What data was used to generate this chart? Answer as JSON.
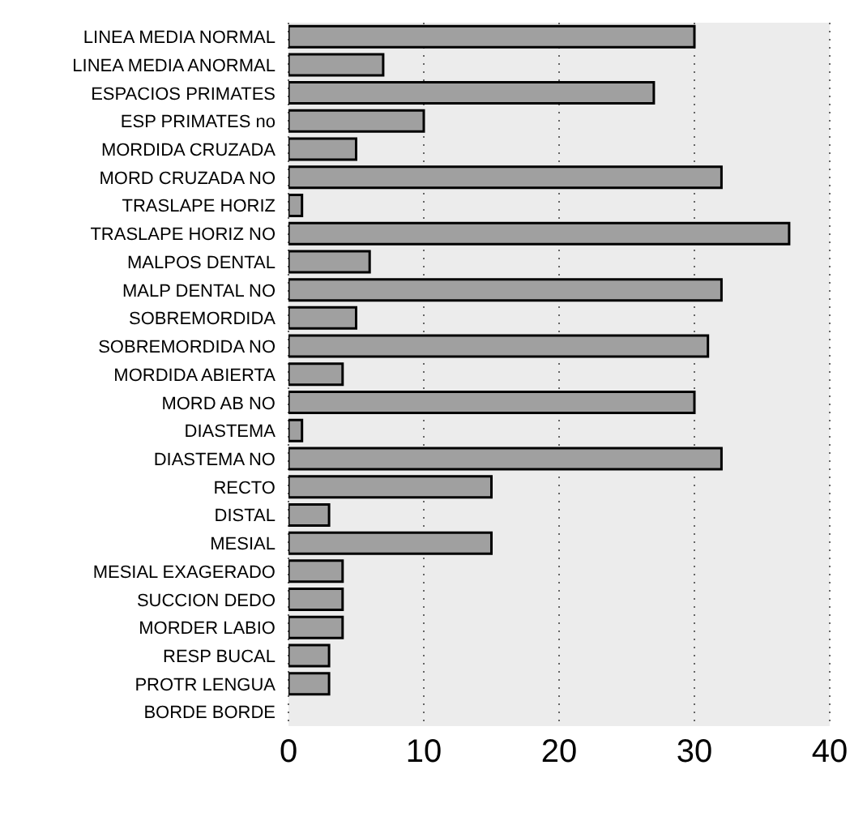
{
  "chart_data": {
    "type": "bar",
    "orientation": "horizontal",
    "categories": [
      "LINEA MEDIA NORMAL",
      "LINEA MEDIA ANORMAL",
      "ESPACIOS PRIMATES",
      "ESP PRIMATES no",
      "MORDIDA CRUZADA",
      "MORD CRUZADA NO",
      "TRASLAPE HORIZ",
      "TRASLAPE HORIZ NO",
      "MALPOS DENTAL",
      "MALP DENTAL NO",
      "SOBREMORDIDA",
      "SOBREMORDIDA NO",
      "MORDIDA ABIERTA",
      "MORD AB NO",
      "DIASTEMA",
      "DIASTEMA NO",
      "RECTO",
      "DISTAL",
      "MESIAL",
      "MESIAL EXAGERADO",
      "SUCCION DEDO",
      "MORDER LABIO",
      "RESP BUCAL",
      "PROTR LENGUA",
      "BORDE BORDE"
    ],
    "values": [
      30,
      7,
      27,
      10,
      5,
      32,
      1,
      37,
      6,
      32,
      5,
      31,
      4,
      30,
      1,
      32,
      15,
      3,
      15,
      4,
      4,
      4,
      3,
      3,
      0
    ],
    "color": "#a0a0a0",
    "xlim": [
      0,
      40
    ],
    "xticks": [
      0,
      10,
      20,
      30,
      40
    ],
    "grid": "x"
  }
}
